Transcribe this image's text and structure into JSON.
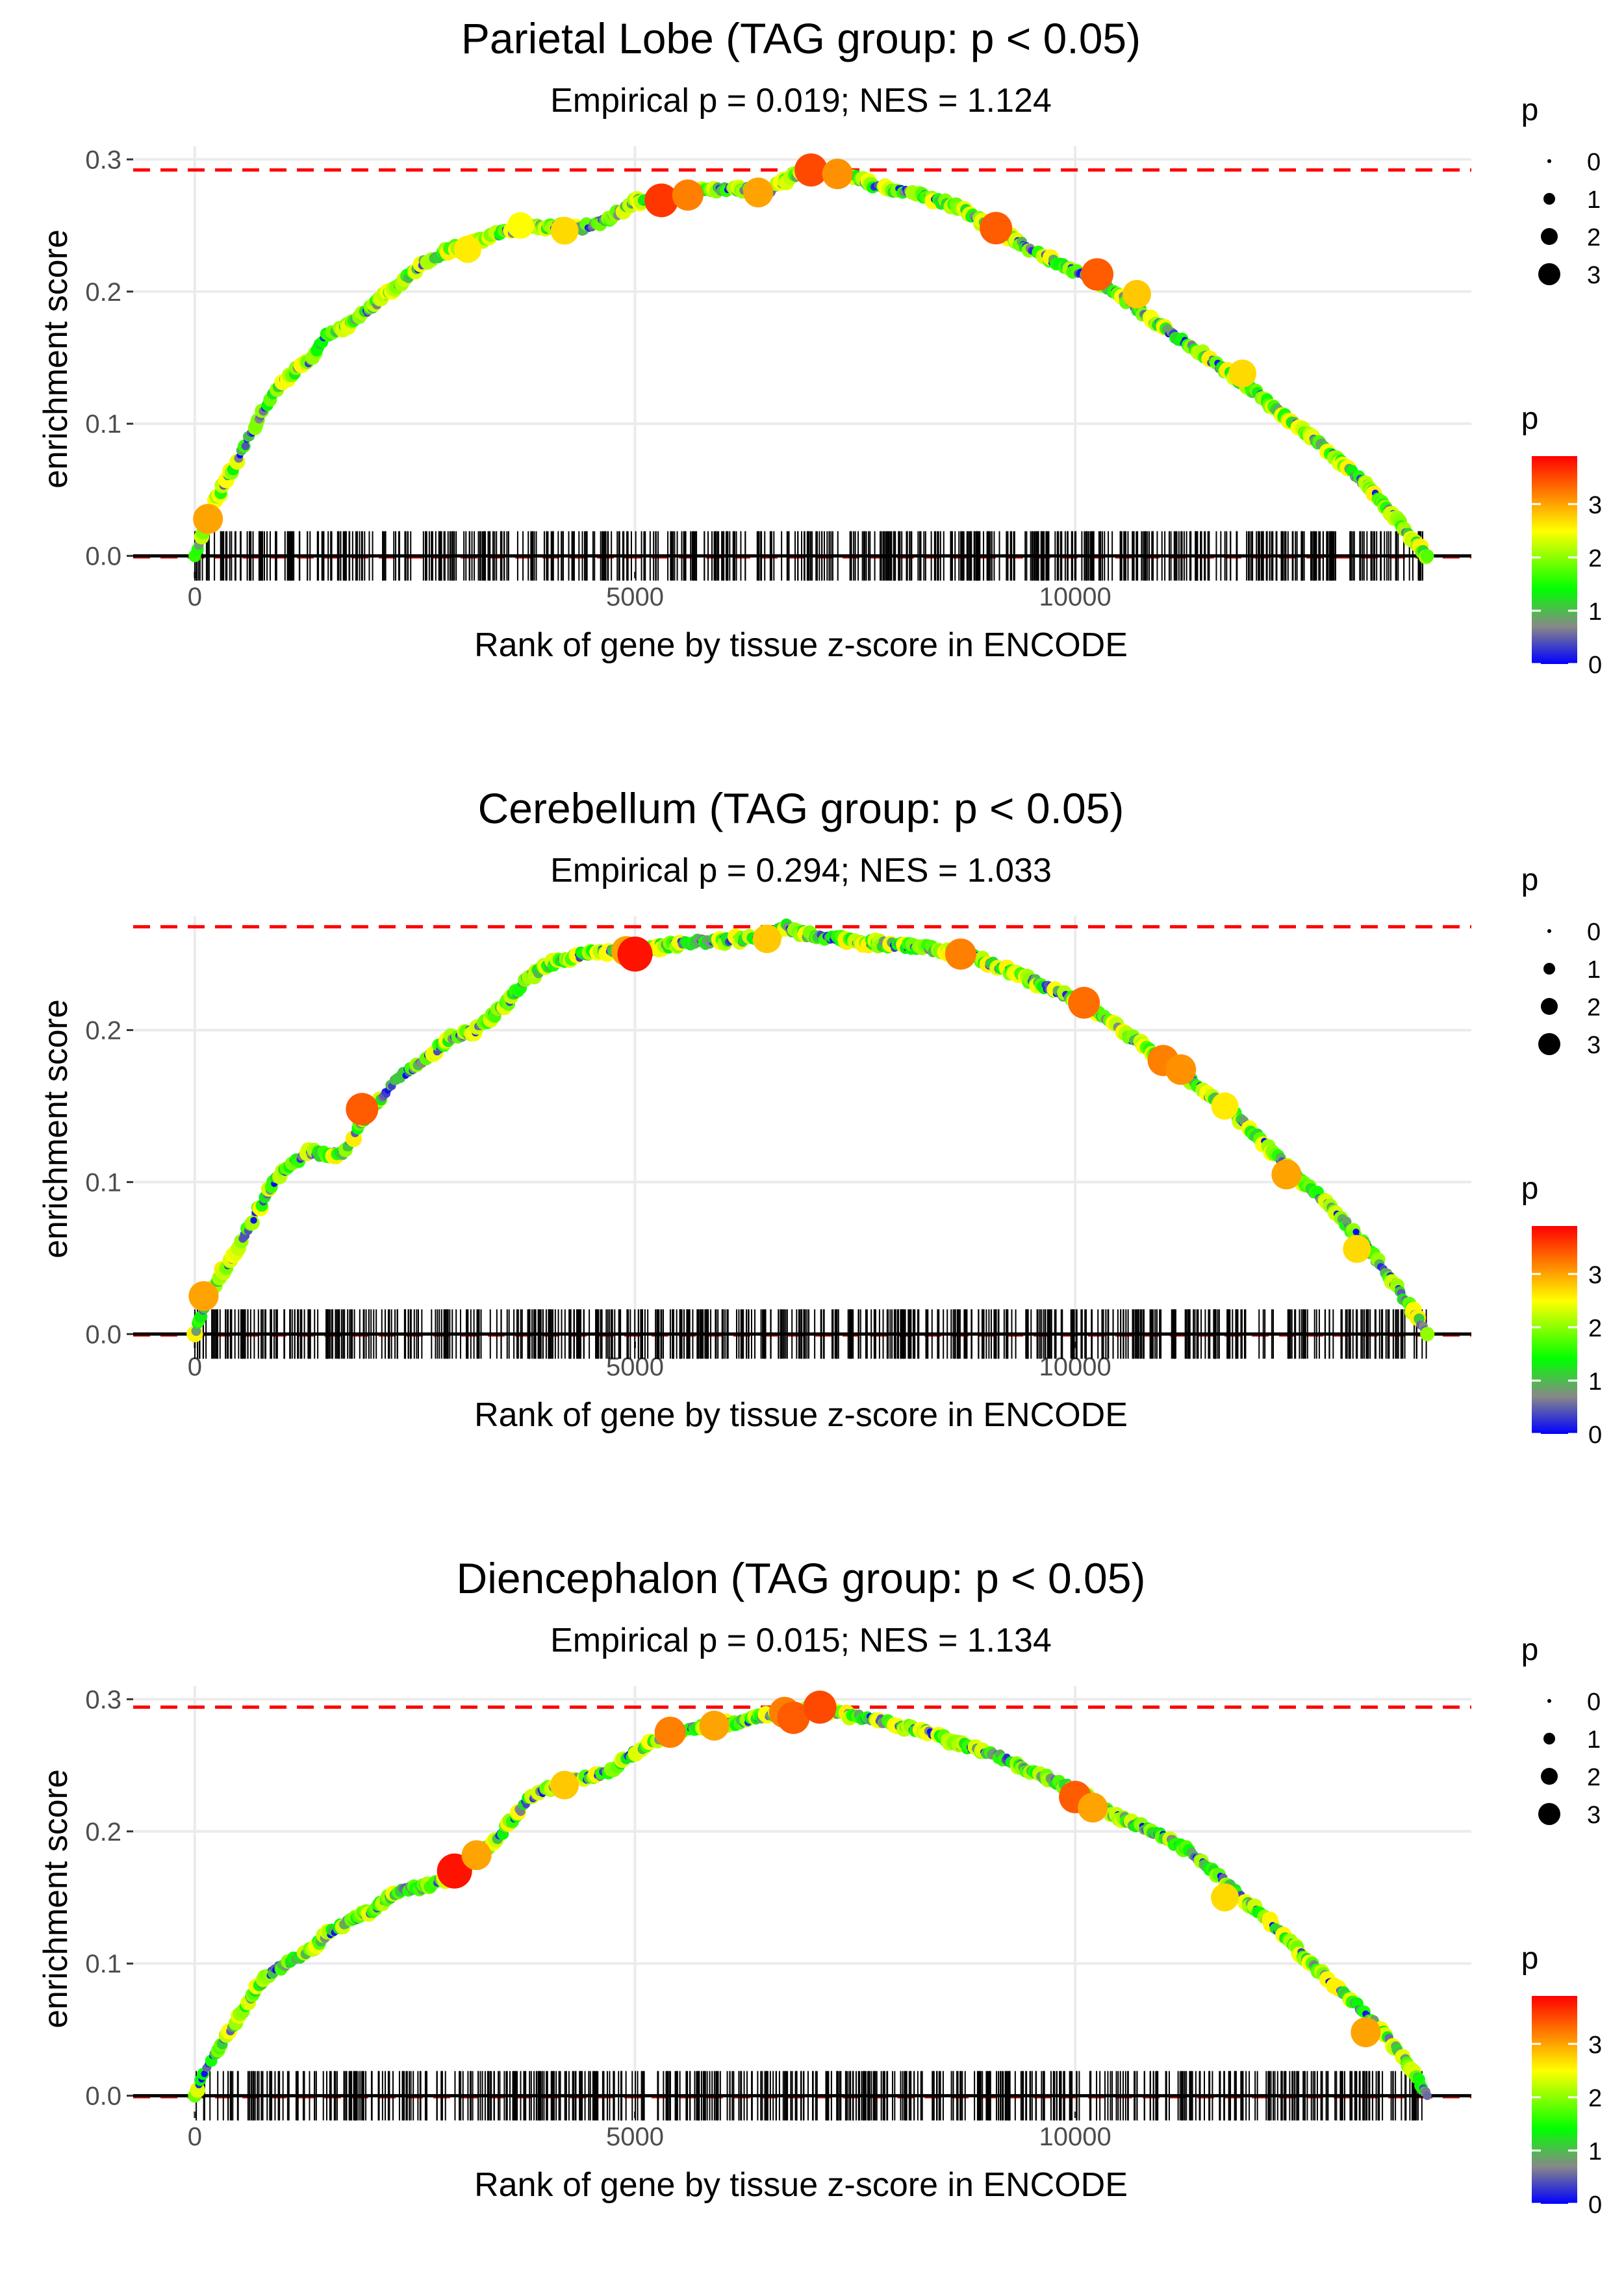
{
  "chart_data": [
    {
      "type": "line",
      "title": "Parietal Lobe (TAG group: p < 0.05)",
      "subtitle": "Empirical p = 0.019; NES = 1.124",
      "xlabel": "Rank of gene by tissue z-score in ENCODE",
      "ylabel": "enrichment score",
      "xlim": [
        -700,
        14500
      ],
      "ylim": [
        -0.012,
        0.31
      ],
      "x_ticks": [
        0,
        5000,
        10000
      ],
      "x_tick_labels": [
        "0",
        "5000",
        "10000"
      ],
      "y_ticks": [
        0,
        0.1,
        0.2,
        0.3
      ],
      "y_tick_labels": [
        "0.0",
        "0.1",
        "0.2",
        "0.3"
      ],
      "max_es": 0.292,
      "curve": {
        "x": [
          0,
          150,
          300,
          500,
          700,
          900,
          1100,
          1300,
          1500,
          1700,
          2000,
          2300,
          2600,
          2900,
          3200,
          3500,
          3800,
          4100,
          4400,
          4700,
          5000,
          5300,
          5600,
          5900,
          6200,
          6500,
          6800,
          7000,
          7200,
          7500,
          7800,
          8100,
          8400,
          8700,
          9000,
          9300,
          9600,
          9900,
          10200,
          10500,
          10800,
          11100,
          11400,
          11700,
          12000,
          12300,
          12600,
          12900,
          13200,
          13500,
          13800,
          14000
        ],
        "y": [
          0.0,
          0.03,
          0.05,
          0.075,
          0.1,
          0.125,
          0.138,
          0.148,
          0.168,
          0.172,
          0.188,
          0.205,
          0.222,
          0.232,
          0.238,
          0.245,
          0.248,
          0.25,
          0.248,
          0.255,
          0.268,
          0.271,
          0.275,
          0.277,
          0.278,
          0.275,
          0.288,
          0.292,
          0.29,
          0.286,
          0.278,
          0.276,
          0.27,
          0.263,
          0.25,
          0.24,
          0.228,
          0.218,
          0.21,
          0.198,
          0.182,
          0.168,
          0.155,
          0.14,
          0.126,
          0.11,
          0.095,
          0.078,
          0.06,
          0.04,
          0.015,
          0.0
        ]
      },
      "highlight_points": [
        {
          "x": 150,
          "y": 0.028,
          "p": 3.0
        },
        {
          "x": 3100,
          "y": 0.232,
          "p": 2.6
        },
        {
          "x": 3700,
          "y": 0.25,
          "p": 2.5
        },
        {
          "x": 4200,
          "y": 0.246,
          "p": 2.7
        },
        {
          "x": 5300,
          "y": 0.269,
          "p": 3.6
        },
        {
          "x": 5600,
          "y": 0.273,
          "p": 3.2
        },
        {
          "x": 6400,
          "y": 0.275,
          "p": 3.0
        },
        {
          "x": 7000,
          "y": 0.292,
          "p": 3.5
        },
        {
          "x": 7300,
          "y": 0.289,
          "p": 3.1
        },
        {
          "x": 9100,
          "y": 0.248,
          "p": 3.4
        },
        {
          "x": 10250,
          "y": 0.213,
          "p": 3.4
        },
        {
          "x": 10700,
          "y": 0.198,
          "p": 2.8
        },
        {
          "x": 11900,
          "y": 0.138,
          "p": 2.7
        }
      ],
      "rug_color": "#000000"
    },
    {
      "type": "line",
      "title": "Cerebellum (TAG group: p < 0.05)",
      "subtitle": "Empirical p = 0.294; NES = 1.033",
      "xlabel": "Rank of gene by tissue z-score in ENCODE",
      "ylabel": "enrichment score",
      "xlim": [
        -700,
        14500
      ],
      "ylim": [
        -0.005,
        0.275
      ],
      "x_ticks": [
        0,
        5000,
        10000
      ],
      "x_tick_labels": [
        "0",
        "5000",
        "10000"
      ],
      "y_ticks": [
        0,
        0.1,
        0.2
      ],
      "y_tick_labels": [
        "0.0",
        "0.1",
        "0.2"
      ],
      "max_es": 0.268,
      "curve": {
        "x": [
          0,
          150,
          300,
          500,
          700,
          900,
          1100,
          1300,
          1500,
          1700,
          1900,
          2100,
          2300,
          2600,
          2900,
          3200,
          3500,
          3800,
          4100,
          4400,
          4700,
          5000,
          5300,
          5600,
          5900,
          6200,
          6500,
          6700,
          7000,
          7300,
          7600,
          7900,
          8200,
          8500,
          8800,
          9100,
          9400,
          9700,
          10000,
          10300,
          10600,
          10900,
          11200,
          11500,
          11800,
          12100,
          12400,
          12700,
          13000,
          13300,
          13600,
          13800,
          14000
        ],
        "y": [
          0.0,
          0.025,
          0.04,
          0.058,
          0.08,
          0.1,
          0.112,
          0.12,
          0.118,
          0.12,
          0.14,
          0.155,
          0.168,
          0.18,
          0.195,
          0.2,
          0.215,
          0.235,
          0.245,
          0.25,
          0.252,
          0.25,
          0.255,
          0.258,
          0.258,
          0.26,
          0.26,
          0.268,
          0.262,
          0.26,
          0.258,
          0.256,
          0.255,
          0.252,
          0.25,
          0.242,
          0.235,
          0.228,
          0.22,
          0.21,
          0.196,
          0.185,
          0.172,
          0.158,
          0.145,
          0.128,
          0.11,
          0.095,
          0.078,
          0.058,
          0.035,
          0.018,
          0.0
        ]
      },
      "highlight_points": [
        {
          "x": 100,
          "y": 0.025,
          "p": 3.0
        },
        {
          "x": 1900,
          "y": 0.148,
          "p": 3.4
        },
        {
          "x": 4900,
          "y": 0.252,
          "p": 3.0
        },
        {
          "x": 5000,
          "y": 0.25,
          "p": 3.8
        },
        {
          "x": 6500,
          "y": 0.26,
          "p": 2.8
        },
        {
          "x": 8700,
          "y": 0.25,
          "p": 3.2
        },
        {
          "x": 10100,
          "y": 0.218,
          "p": 3.3
        },
        {
          "x": 11000,
          "y": 0.18,
          "p": 3.2
        },
        {
          "x": 11200,
          "y": 0.174,
          "p": 3.1
        },
        {
          "x": 11700,
          "y": 0.15,
          "p": 2.6
        },
        {
          "x": 12400,
          "y": 0.105,
          "p": 3.0
        },
        {
          "x": 13200,
          "y": 0.056,
          "p": 2.7
        }
      ],
      "rug_color": "#000000"
    },
    {
      "type": "line",
      "title": "Diencephalon (TAG group: p < 0.05)",
      "subtitle": "Empirical p = 0.015; NES = 1.134",
      "xlabel": "Rank of gene by tissue z-score in ENCODE",
      "ylabel": "enrichment score",
      "xlim": [
        -700,
        14500
      ],
      "ylim": [
        -0.012,
        0.31
      ],
      "x_ticks": [
        0,
        5000,
        10000
      ],
      "x_tick_labels": [
        "0",
        "5000",
        "10000"
      ],
      "y_ticks": [
        0,
        0.1,
        0.2,
        0.3
      ],
      "y_tick_labels": [
        "0.0",
        "0.1",
        "0.2",
        "0.3"
      ],
      "max_es": 0.294,
      "curve": {
        "x": [
          0,
          150,
          300,
          500,
          700,
          900,
          1100,
          1300,
          1500,
          1700,
          2000,
          2300,
          2600,
          2900,
          3200,
          3500,
          3800,
          4100,
          4400,
          4700,
          5000,
          5300,
          5600,
          5900,
          6200,
          6500,
          6800,
          7100,
          7400,
          7700,
          8000,
          8300,
          8600,
          8900,
          9200,
          9500,
          9800,
          10100,
          10400,
          10700,
          11000,
          11300,
          11600,
          11900,
          12200,
          12500,
          12800,
          13100,
          13400,
          13700,
          13900,
          14000
        ],
        "y": [
          0.0,
          0.025,
          0.038,
          0.06,
          0.082,
          0.095,
          0.102,
          0.11,
          0.122,
          0.13,
          0.14,
          0.155,
          0.158,
          0.165,
          0.18,
          0.2,
          0.225,
          0.235,
          0.24,
          0.245,
          0.26,
          0.272,
          0.278,
          0.28,
          0.283,
          0.288,
          0.29,
          0.294,
          0.288,
          0.285,
          0.28,
          0.276,
          0.268,
          0.262,
          0.255,
          0.245,
          0.237,
          0.228,
          0.214,
          0.205,
          0.196,
          0.185,
          0.168,
          0.15,
          0.132,
          0.112,
          0.092,
          0.075,
          0.055,
          0.032,
          0.012,
          0.0
        ]
      },
      "highlight_points": [
        {
          "x": 2950,
          "y": 0.17,
          "p": 3.8
        },
        {
          "x": 3200,
          "y": 0.182,
          "p": 3.0
        },
        {
          "x": 4200,
          "y": 0.235,
          "p": 2.8
        },
        {
          "x": 5400,
          "y": 0.275,
          "p": 3.2
        },
        {
          "x": 5900,
          "y": 0.28,
          "p": 3.0
        },
        {
          "x": 6700,
          "y": 0.29,
          "p": 3.2
        },
        {
          "x": 6800,
          "y": 0.286,
          "p": 3.4
        },
        {
          "x": 7100,
          "y": 0.294,
          "p": 3.5
        },
        {
          "x": 10000,
          "y": 0.226,
          "p": 3.4
        },
        {
          "x": 10200,
          "y": 0.218,
          "p": 3.0
        },
        {
          "x": 11700,
          "y": 0.15,
          "p": 2.7
        },
        {
          "x": 13300,
          "y": 0.048,
          "p": 3.0
        }
      ],
      "rug_color": "#000000"
    }
  ],
  "legends": {
    "size_title": "p",
    "size_labels": [
      "0",
      "1",
      "2",
      "3"
    ],
    "color_title": "p",
    "color_labels": [
      "0",
      "1",
      "2",
      "3"
    ],
    "color_stops": [
      "#0000ff",
      "#888888",
      "#00ff00",
      "#ffff00",
      "#ff0000"
    ]
  }
}
